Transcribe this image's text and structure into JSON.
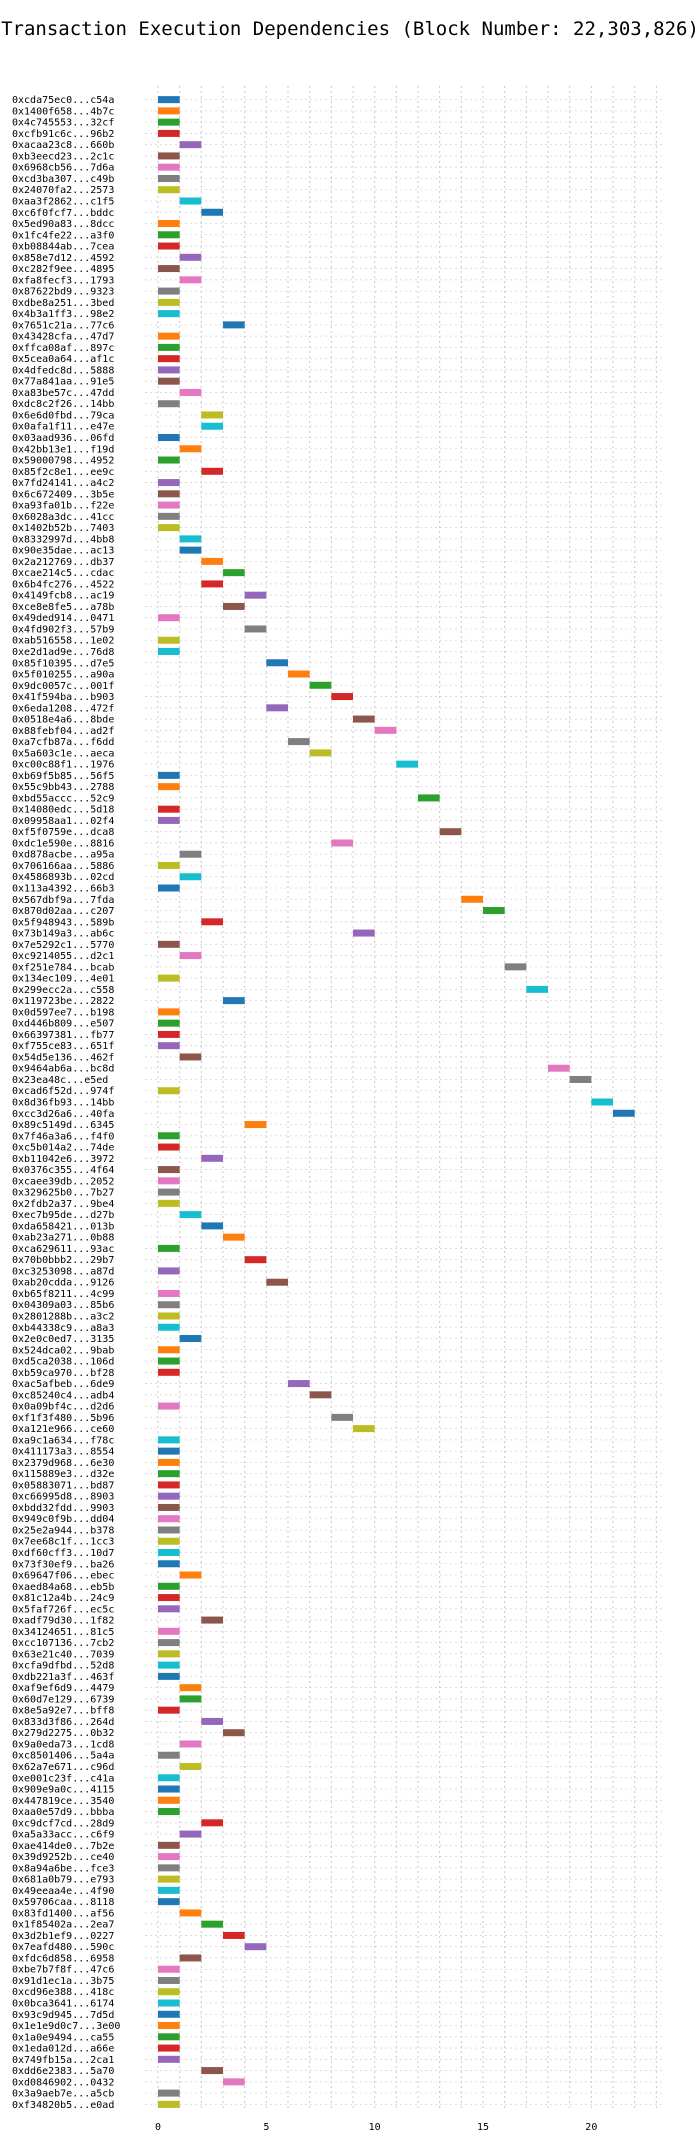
{
  "chart_data": {
    "type": "bar",
    "orientation": "horizontal-gantt",
    "title": "Transaction Execution Dependencies (Block Number: 22,303,826)",
    "xlabel": "",
    "ylabel": "",
    "xlim": [
      -0.6,
      23.4
    ],
    "xticks": [
      0,
      5,
      10,
      15,
      20
    ],
    "grid": true,
    "bar_width": 1,
    "palette": [
      "#1f77b4",
      "#ff7f0e",
      "#2ca02c",
      "#d62728",
      "#9467bd",
      "#8c564b",
      "#e377c2",
      "#7f7f7f",
      "#bcbd22",
      "#17becf"
    ],
    "rows": [
      {
        "label": "0xcda75ec0...c54a",
        "start": 0,
        "color": 0
      },
      {
        "label": "0x1400f658...4b7c",
        "start": 0,
        "color": 1
      },
      {
        "label": "0x4c745553...32cf",
        "start": 0,
        "color": 2
      },
      {
        "label": "0xcfb91c6c...96b2",
        "start": 0,
        "color": 3
      },
      {
        "label": "0xacaa23c8...660b",
        "start": 1,
        "color": 4
      },
      {
        "label": "0xb3eecd23...2c1c",
        "start": 0,
        "color": 5
      },
      {
        "label": "0x6968cb56...7d6a",
        "start": 0,
        "color": 6
      },
      {
        "label": "0xcd3ba307...c49b",
        "start": 0,
        "color": 7
      },
      {
        "label": "0x24070fa2...2573",
        "start": 0,
        "color": 8
      },
      {
        "label": "0xaa3f2862...c1f5",
        "start": 1,
        "color": 9
      },
      {
        "label": "0xc6f0fcf7...bddc",
        "start": 2,
        "color": 0
      },
      {
        "label": "0x5ed90a83...8dcc",
        "start": 0,
        "color": 1
      },
      {
        "label": "0x1fc4fe22...a3f0",
        "start": 0,
        "color": 2
      },
      {
        "label": "0xb08844ab...7cea",
        "start": 0,
        "color": 3
      },
      {
        "label": "0x858e7d12...4592",
        "start": 1,
        "color": 4
      },
      {
        "label": "0xc282f9ee...4895",
        "start": 0,
        "color": 5
      },
      {
        "label": "0xfa8fecf3...1793",
        "start": 1,
        "color": 6
      },
      {
        "label": "0x87622bd9...9323",
        "start": 0,
        "color": 7
      },
      {
        "label": "0xdbe8a251...3bed",
        "start": 0,
        "color": 8
      },
      {
        "label": "0x4b3a1ff3...98e2",
        "start": 0,
        "color": 9
      },
      {
        "label": "0x7651c21a...77c6",
        "start": 3,
        "color": 0
      },
      {
        "label": "0x43428cfa...47d7",
        "start": 0,
        "color": 1
      },
      {
        "label": "0xffca08af...897c",
        "start": 0,
        "color": 2
      },
      {
        "label": "0x5cea0a64...af1c",
        "start": 0,
        "color": 3
      },
      {
        "label": "0x4dfedc8d...5888",
        "start": 0,
        "color": 4
      },
      {
        "label": "0x77a841aa...91e5",
        "start": 0,
        "color": 5
      },
      {
        "label": "0xa83be57c...47dd",
        "start": 1,
        "color": 6
      },
      {
        "label": "0xdc8c2f26...14bb",
        "start": 0,
        "color": 7
      },
      {
        "label": "0x6e6d0fbd...79ca",
        "start": 2,
        "color": 8
      },
      {
        "label": "0x0afa1f11...e47e",
        "start": 2,
        "color": 9
      },
      {
        "label": "0x03aad936...06fd",
        "start": 0,
        "color": 0
      },
      {
        "label": "0x42bb13e1...f19d",
        "start": 1,
        "color": 1
      },
      {
        "label": "0x59000798...4952",
        "start": 0,
        "color": 2
      },
      {
        "label": "0x85f2c8e1...ee9c",
        "start": 2,
        "color": 3
      },
      {
        "label": "0x7fd24141...a4c2",
        "start": 0,
        "color": 4
      },
      {
        "label": "0x6c672409...3b5e",
        "start": 0,
        "color": 5
      },
      {
        "label": "0xa93fa01b...f22e",
        "start": 0,
        "color": 6
      },
      {
        "label": "0x6028a3dc...41cc",
        "start": 0,
        "color": 7
      },
      {
        "label": "0x1402b52b...7403",
        "start": 0,
        "color": 8
      },
      {
        "label": "0x8332997d...4bb8",
        "start": 1,
        "color": 9
      },
      {
        "label": "0x90e35dae...ac13",
        "start": 1,
        "color": 0
      },
      {
        "label": "0x2a212769...db37",
        "start": 2,
        "color": 1
      },
      {
        "label": "0xcae214c5...cdac",
        "start": 3,
        "color": 2
      },
      {
        "label": "0x6b4fc276...4522",
        "start": 2,
        "color": 3
      },
      {
        "label": "0x4149fcb8...ac19",
        "start": 4,
        "color": 4
      },
      {
        "label": "0xce8e8fe5...a78b",
        "start": 3,
        "color": 5
      },
      {
        "label": "0x49ded914...0471",
        "start": 0,
        "color": 6
      },
      {
        "label": "0x4fd902f3...57b9",
        "start": 4,
        "color": 7
      },
      {
        "label": "0xab516558...1e02",
        "start": 0,
        "color": 8
      },
      {
        "label": "0xe2d1ad9e...76d8",
        "start": 0,
        "color": 9
      },
      {
        "label": "0x85f10395...d7e5",
        "start": 5,
        "color": 0
      },
      {
        "label": "0x5f010255...a90a",
        "start": 6,
        "color": 1
      },
      {
        "label": "0x9dc0057c...001f",
        "start": 7,
        "color": 2
      },
      {
        "label": "0x41f594ba...b903",
        "start": 8,
        "color": 3
      },
      {
        "label": "0x6eda1208...472f",
        "start": 5,
        "color": 4
      },
      {
        "label": "0x0518e4a6...8bde",
        "start": 9,
        "color": 5
      },
      {
        "label": "0x88febf04...ad2f",
        "start": 10,
        "color": 6
      },
      {
        "label": "0xa7cfb87a...f6dd",
        "start": 6,
        "color": 7
      },
      {
        "label": "0x5a603c1e...aeca",
        "start": 7,
        "color": 8
      },
      {
        "label": "0xc00c88f1...1976",
        "start": 11,
        "color": 9
      },
      {
        "label": "0xb69f5b85...56f5",
        "start": 0,
        "color": 0
      },
      {
        "label": "0x55c9bb43...2788",
        "start": 0,
        "color": 1
      },
      {
        "label": "0xbd55accc...52c9",
        "start": 12,
        "color": 2
      },
      {
        "label": "0x14080edc...5d18",
        "start": 0,
        "color": 3
      },
      {
        "label": "0x09958aa1...02f4",
        "start": 0,
        "color": 4
      },
      {
        "label": "0xf5f0759e...dca8",
        "start": 13,
        "color": 5
      },
      {
        "label": "0xdc1e590e...8816",
        "start": 8,
        "color": 6
      },
      {
        "label": "0xd878acbe...a95a",
        "start": 1,
        "color": 7
      },
      {
        "label": "0x706166aa...5886",
        "start": 0,
        "color": 8
      },
      {
        "label": "0x4586893b...02cd",
        "start": 1,
        "color": 9
      },
      {
        "label": "0x113a4392...66b3",
        "start": 0,
        "color": 0
      },
      {
        "label": "0x567dbf9a...7fda",
        "start": 14,
        "color": 1
      },
      {
        "label": "0x870d02aa...c207",
        "start": 15,
        "color": 2
      },
      {
        "label": "0x5f948943...589b",
        "start": 2,
        "color": 3
      },
      {
        "label": "0x73b149a3...ab6c",
        "start": 9,
        "color": 4
      },
      {
        "label": "0x7e5292c1...5770",
        "start": 0,
        "color": 5
      },
      {
        "label": "0xc9214055...d2c1",
        "start": 1,
        "color": 6
      },
      {
        "label": "0xf251e784...bcab",
        "start": 16,
        "color": 7
      },
      {
        "label": "0x134ec109...4e01",
        "start": 0,
        "color": 8
      },
      {
        "label": "0x299ecc2a...c558",
        "start": 17,
        "color": 9
      },
      {
        "label": "0x119723be...2822",
        "start": 3,
        "color": 0
      },
      {
        "label": "0x0d597ee7...b198",
        "start": 0,
        "color": 1
      },
      {
        "label": "0xd446b809...e507",
        "start": 0,
        "color": 2
      },
      {
        "label": "0x66397381...fb77",
        "start": 0,
        "color": 3
      },
      {
        "label": "0xf755ce83...651f",
        "start": 0,
        "color": 4
      },
      {
        "label": "0x54d5e136...462f",
        "start": 1,
        "color": 5
      },
      {
        "label": "0x9464ab6a...bc8d",
        "start": 18,
        "color": 6
      },
      {
        "label": "0x23ea48c...e5ed",
        "start": 19,
        "color": 7
      },
      {
        "label": "0xcad6f52d...974f",
        "start": 0,
        "color": 8
      },
      {
        "label": "0x8d36fb93...14bb",
        "start": 20,
        "color": 9
      },
      {
        "label": "0xcc3d26a6...40fa",
        "start": 21,
        "color": 0
      },
      {
        "label": "0x89c5149d...6345",
        "start": 4,
        "color": 1
      },
      {
        "label": "0x7f46a3a6...f4f0",
        "start": 0,
        "color": 2
      },
      {
        "label": "0xc5b014a2...74de",
        "start": 0,
        "color": 3
      },
      {
        "label": "0xb11042e6...3972",
        "start": 2,
        "color": 4
      },
      {
        "label": "0x0376c355...4f64",
        "start": 0,
        "color": 5
      },
      {
        "label": "0xcaee39db...2052",
        "start": 0,
        "color": 6
      },
      {
        "label": "0x329625b0...7b27",
        "start": 0,
        "color": 7
      },
      {
        "label": "0x2fdb2a37...9be4",
        "start": 0,
        "color": 8
      },
      {
        "label": "0xec7b95de...d27b",
        "start": 1,
        "color": 9
      },
      {
        "label": "0xda658421...013b",
        "start": 2,
        "color": 0
      },
      {
        "label": "0xab23a271...0b88",
        "start": 3,
        "color": 1
      },
      {
        "label": "0xca629611...93ac",
        "start": 0,
        "color": 2
      },
      {
        "label": "0x70b0bbb2...29b7",
        "start": 4,
        "color": 3
      },
      {
        "label": "0xc3253098...a87d",
        "start": 0,
        "color": 4
      },
      {
        "label": "0xab20cdda...9126",
        "start": 5,
        "color": 5
      },
      {
        "label": "0xb65f8211...4c99",
        "start": 0,
        "color": 6
      },
      {
        "label": "0x04309a03...85b6",
        "start": 0,
        "color": 7
      },
      {
        "label": "0x2801288b...a3c2",
        "start": 0,
        "color": 8
      },
      {
        "label": "0xb44338c9...a8a3",
        "start": 0,
        "color": 9
      },
      {
        "label": "0x2e0c0ed7...3135",
        "start": 1,
        "color": 0
      },
      {
        "label": "0x524dca02...9bab",
        "start": 0,
        "color": 1
      },
      {
        "label": "0xd5ca2038...106d",
        "start": 0,
        "color": 2
      },
      {
        "label": "0xb59ca970...bf28",
        "start": 0,
        "color": 3
      },
      {
        "label": "0xac5afbeb...6de9",
        "start": 6,
        "color": 4
      },
      {
        "label": "0xc85240c4...adb4",
        "start": 7,
        "color": 5
      },
      {
        "label": "0x0a09bf4c...d2d6",
        "start": 0,
        "color": 6
      },
      {
        "label": "0xf1f3f480...5b96",
        "start": 8,
        "color": 7
      },
      {
        "label": "0xa121e966...ce60",
        "start": 9,
        "color": 8
      },
      {
        "label": "0xa9c1a634...f78c",
        "start": 0,
        "color": 9
      },
      {
        "label": "0x411173a3...8554",
        "start": 0,
        "color": 0
      },
      {
        "label": "0x2379d968...6e30",
        "start": 0,
        "color": 1
      },
      {
        "label": "0x115889e3...d32e",
        "start": 0,
        "color": 2
      },
      {
        "label": "0x05883071...bd87",
        "start": 0,
        "color": 3
      },
      {
        "label": "0xc66995d8...8903",
        "start": 0,
        "color": 4
      },
      {
        "label": "0xbdd32fdd...9903",
        "start": 0,
        "color": 5
      },
      {
        "label": "0x949c0f9b...dd04",
        "start": 0,
        "color": 6
      },
      {
        "label": "0x25e2a944...b378",
        "start": 0,
        "color": 7
      },
      {
        "label": "0x7ee68c1f...1cc3",
        "start": 0,
        "color": 8
      },
      {
        "label": "0xdf60cff3...10d7",
        "start": 0,
        "color": 9
      },
      {
        "label": "0x73f30ef9...ba26",
        "start": 0,
        "color": 0
      },
      {
        "label": "0x69647f06...ebec",
        "start": 1,
        "color": 1
      },
      {
        "label": "0xaed84a68...eb5b",
        "start": 0,
        "color": 2
      },
      {
        "label": "0x81c12a4b...24c9",
        "start": 0,
        "color": 3
      },
      {
        "label": "0x5faf726f...ec5c",
        "start": 0,
        "color": 4
      },
      {
        "label": "0xadf79d30...1f82",
        "start": 2,
        "color": 5
      },
      {
        "label": "0x34124651...81c5",
        "start": 0,
        "color": 6
      },
      {
        "label": "0xcc107136...7cb2",
        "start": 0,
        "color": 7
      },
      {
        "label": "0x63e21c40...7039",
        "start": 0,
        "color": 8
      },
      {
        "label": "0xcfa9dfbd...52d8",
        "start": 0,
        "color": 9
      },
      {
        "label": "0xdb221a3f...463f",
        "start": 0,
        "color": 0
      },
      {
        "label": "0xaf9ef6d9...4479",
        "start": 1,
        "color": 1
      },
      {
        "label": "0x60d7e129...6739",
        "start": 1,
        "color": 2
      },
      {
        "label": "0x8e5a92e7...bff8",
        "start": 0,
        "color": 3
      },
      {
        "label": "0x833d3f86...264d",
        "start": 2,
        "color": 4
      },
      {
        "label": "0x279d2275...0b32",
        "start": 3,
        "color": 5
      },
      {
        "label": "0x9a0eda73...1cd8",
        "start": 1,
        "color": 6
      },
      {
        "label": "0xc8501406...5a4a",
        "start": 0,
        "color": 7
      },
      {
        "label": "0x62a7e671...c96d",
        "start": 1,
        "color": 8
      },
      {
        "label": "0xe001c23f...c41a",
        "start": 0,
        "color": 9
      },
      {
        "label": "0x909e9a0c...4115",
        "start": 0,
        "color": 0
      },
      {
        "label": "0x447819ce...3540",
        "start": 0,
        "color": 1
      },
      {
        "label": "0xaa0e57d9...bbba",
        "start": 0,
        "color": 2
      },
      {
        "label": "0xc9dcf7cd...28d9",
        "start": 2,
        "color": 3
      },
      {
        "label": "0xa5a33acc...c6f9",
        "start": 1,
        "color": 4
      },
      {
        "label": "0xae414de0...7b2e",
        "start": 0,
        "color": 5
      },
      {
        "label": "0x39d9252b...ce40",
        "start": 0,
        "color": 6
      },
      {
        "label": "0x8a94a6be...fce3",
        "start": 0,
        "color": 7
      },
      {
        "label": "0x681a0b79...e793",
        "start": 0,
        "color": 8
      },
      {
        "label": "0x49eeaa4e...4f90",
        "start": 0,
        "color": 9
      },
      {
        "label": "0x59706caa...8118",
        "start": 0,
        "color": 0
      },
      {
        "label": "0x83fd1400...af56",
        "start": 1,
        "color": 1
      },
      {
        "label": "0x1f85402a...2ea7",
        "start": 2,
        "color": 2
      },
      {
        "label": "0x3d2b1ef9...0227",
        "start": 3,
        "color": 3
      },
      {
        "label": "0x7eafd480...590c",
        "start": 4,
        "color": 4
      },
      {
        "label": "0xfdc6d858...6958",
        "start": 1,
        "color": 5
      },
      {
        "label": "0xbe7b7f8f...47c6",
        "start": 0,
        "color": 6
      },
      {
        "label": "0x91d1ec1a...3b75",
        "start": 0,
        "color": 7
      },
      {
        "label": "0xcd96e388...418c",
        "start": 0,
        "color": 8
      },
      {
        "label": "0x0bca3641...6174",
        "start": 0,
        "color": 9
      },
      {
        "label": "0x93c9d945...7d5d",
        "start": 0,
        "color": 0
      },
      {
        "label": "0x1e1e9d0c7...3e00",
        "start": 0,
        "color": 1
      },
      {
        "label": "0x1a0e9494...ca55",
        "start": 0,
        "color": 2
      },
      {
        "label": "0x1eda012d...a66e",
        "start": 0,
        "color": 3
      },
      {
        "label": "0x749fb15a...2ca1",
        "start": 0,
        "color": 4
      },
      {
        "label": "0xdd6e2383...5a70",
        "start": 2,
        "color": 5
      },
      {
        "label": "0xd0846902...0432",
        "start": 3,
        "color": 6
      },
      {
        "label": "0x3a9aeb7e...a5cb",
        "start": 0,
        "color": 7
      },
      {
        "label": "0xf34820b5...e0ad",
        "start": 0,
        "color": 8
      }
    ]
  }
}
